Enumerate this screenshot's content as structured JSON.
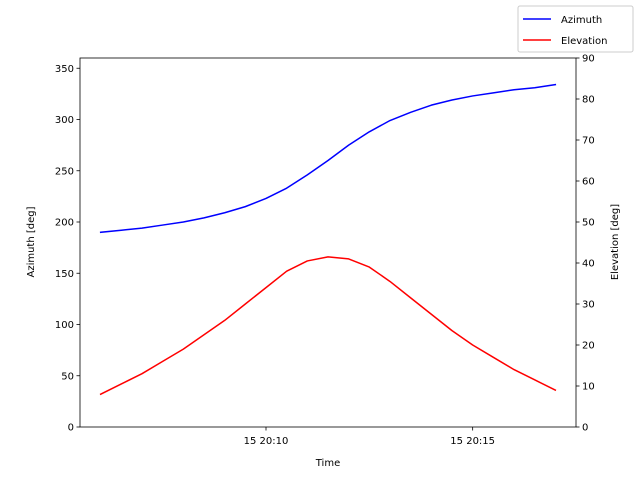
{
  "chart_data": {
    "type": "line",
    "xlabel": "Time",
    "ylabel_left": "Azimuth [deg]",
    "ylabel_right": "Elevation [deg]",
    "xlim": [
      "15 20:05:30",
      "15 20:17:30"
    ],
    "ylim_left": [
      0,
      360
    ],
    "ylim_right": [
      0,
      90
    ],
    "x_ticks": [
      {
        "time": "15 20:10:00",
        "label": "15 20:10"
      },
      {
        "time": "15 20:15:00",
        "label": "15 20:15"
      }
    ],
    "y_ticks_left": [
      0,
      50,
      100,
      150,
      200,
      250,
      300,
      350
    ],
    "y_ticks_right": [
      0,
      10,
      20,
      30,
      40,
      50,
      60,
      70,
      80,
      90
    ],
    "legend_position": "top-right",
    "x": [
      "15 20:06:00",
      "15 20:06:30",
      "15 20:07:00",
      "15 20:07:30",
      "15 20:08:00",
      "15 20:08:30",
      "15 20:09:00",
      "15 20:09:30",
      "15 20:10:00",
      "15 20:10:30",
      "15 20:11:00",
      "15 20:11:30",
      "15 20:12:00",
      "15 20:12:30",
      "15 20:13:00",
      "15 20:13:30",
      "15 20:14:00",
      "15 20:14:30",
      "15 20:15:00",
      "15 20:15:30",
      "15 20:16:00",
      "15 20:16:30",
      "15 20:17:00"
    ],
    "series": [
      {
        "name": "Azimuth",
        "axis": "left",
        "color": "#0000ff",
        "values": [
          190,
          192,
          194,
          197,
          200,
          204,
          209,
          215,
          223,
          233,
          246,
          260,
          275,
          288,
          299,
          307,
          314,
          319,
          323,
          326,
          329,
          331,
          334
        ]
      },
      {
        "name": "Elevation",
        "axis": "right",
        "color": "#ff0000",
        "values": [
          8,
          10.5,
          13,
          16,
          19,
          22.5,
          26,
          30,
          34,
          38,
          40.5,
          41.5,
          41,
          39,
          35.5,
          31.5,
          27.5,
          23.5,
          20,
          17,
          14,
          11.5,
          9
        ]
      }
    ]
  }
}
